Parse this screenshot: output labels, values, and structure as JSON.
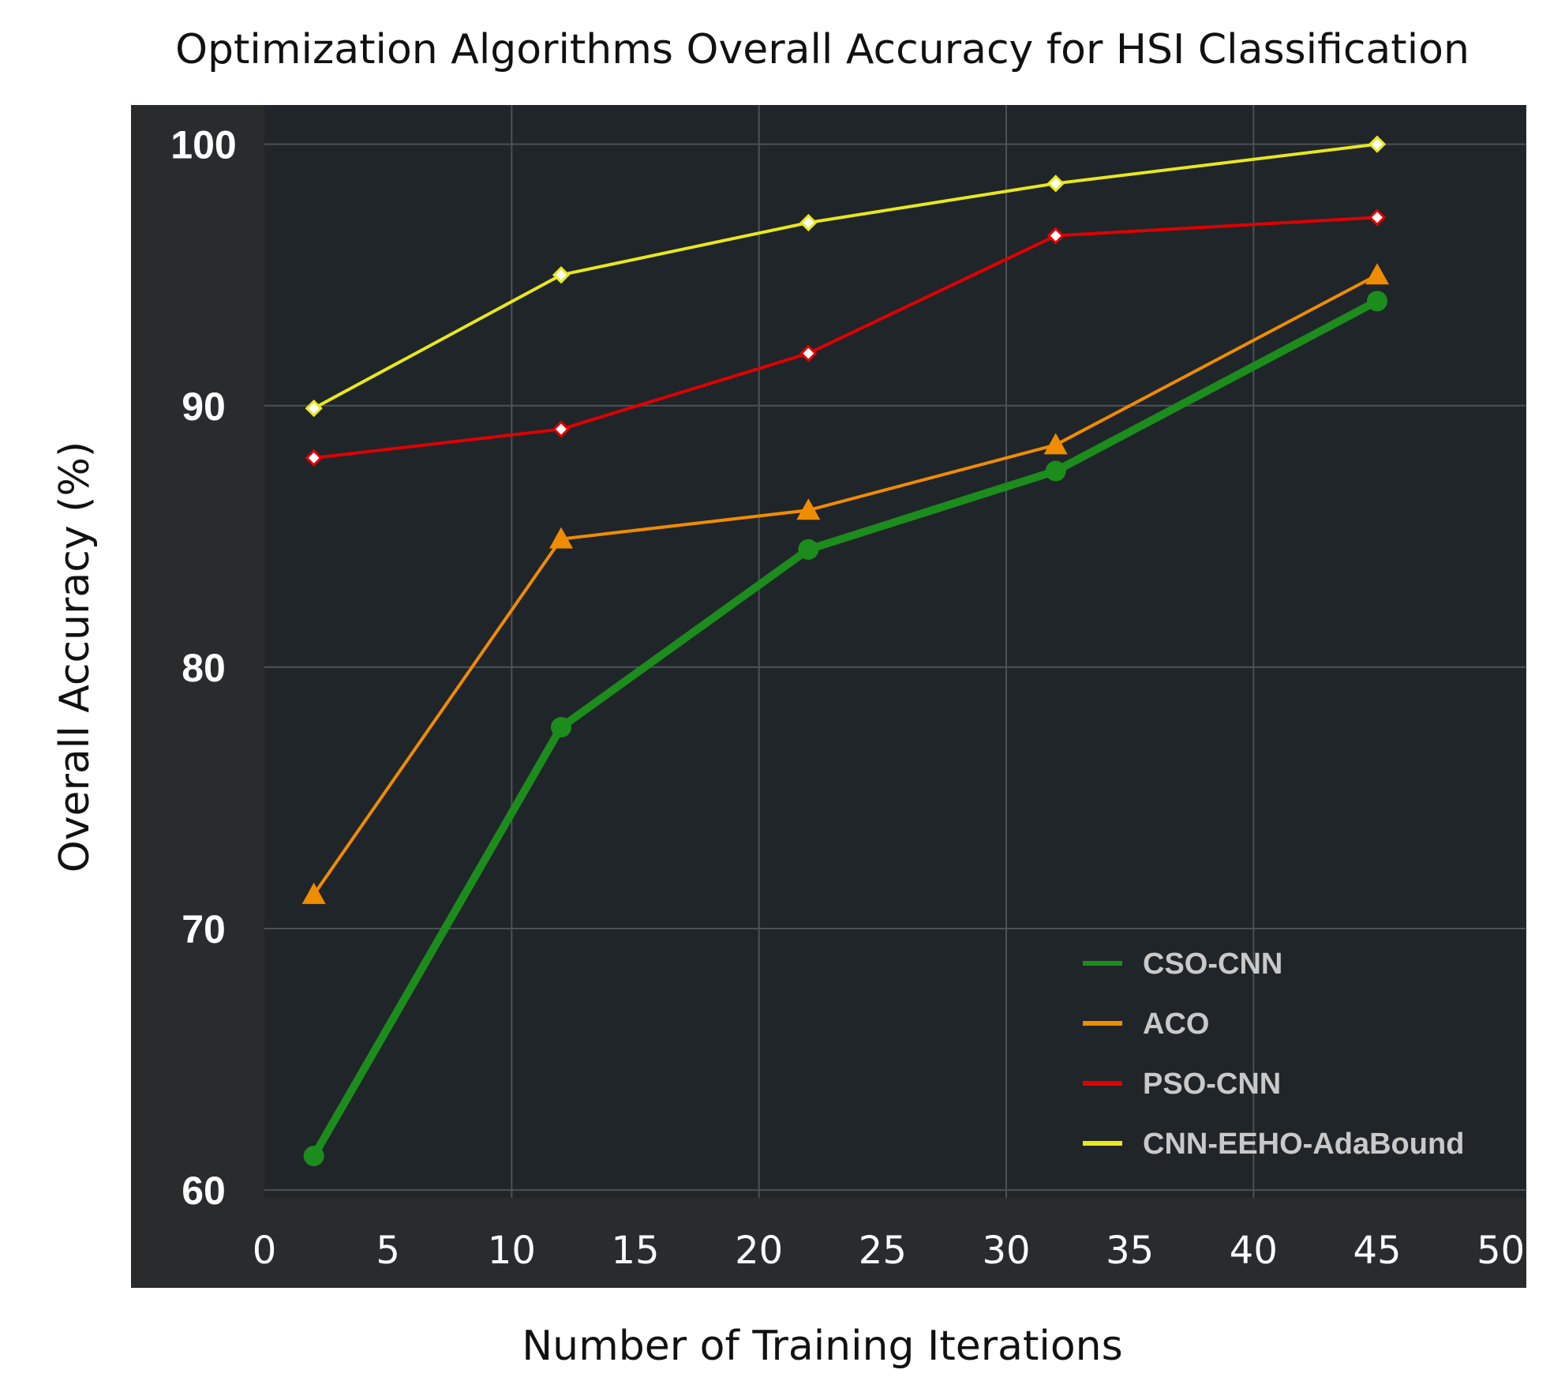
{
  "chart_data": {
    "type": "line",
    "title": "Optimization Algorithms Overall Accuracy for HSI Classification",
    "xlabel": "Number of Training Iterations",
    "ylabel": "Overall Accuracy (%)",
    "xlim": [
      0,
      51
    ],
    "ylim": [
      59.7,
      101.5
    ],
    "xticks": [
      0,
      5,
      10,
      15,
      20,
      25,
      30,
      35,
      40,
      45,
      50
    ],
    "yticks": [
      60,
      70,
      80,
      90,
      100
    ],
    "grid": true,
    "legend_position": "bottom-right",
    "series": [
      {
        "name": "CSO-CNN",
        "color": "#1c8c1c",
        "marker": "circle",
        "x": [
          2,
          12,
          22,
          32,
          45
        ],
        "y": [
          61.3,
          77.7,
          84.5,
          87.5,
          94
        ]
      },
      {
        "name": "ACO",
        "color": "#f08c00",
        "marker": "triangle",
        "x": [
          2,
          12,
          22,
          32,
          45
        ],
        "y": [
          71.3,
          84.9,
          86,
          88.5,
          95
        ]
      },
      {
        "name": "PSO-CNN",
        "color": "#e00000",
        "marker": "diamond",
        "x": [
          2,
          12,
          22,
          32,
          45
        ],
        "y": [
          88,
          89.1,
          92,
          96.5,
          97.2
        ]
      },
      {
        "name": "CNN-EEHO-AdaBound",
        "color": "#e8e81c",
        "marker": "diamond",
        "x": [
          2,
          12,
          22,
          32,
          45
        ],
        "y": [
          89.9,
          95,
          97,
          98.5,
          100
        ]
      }
    ]
  }
}
